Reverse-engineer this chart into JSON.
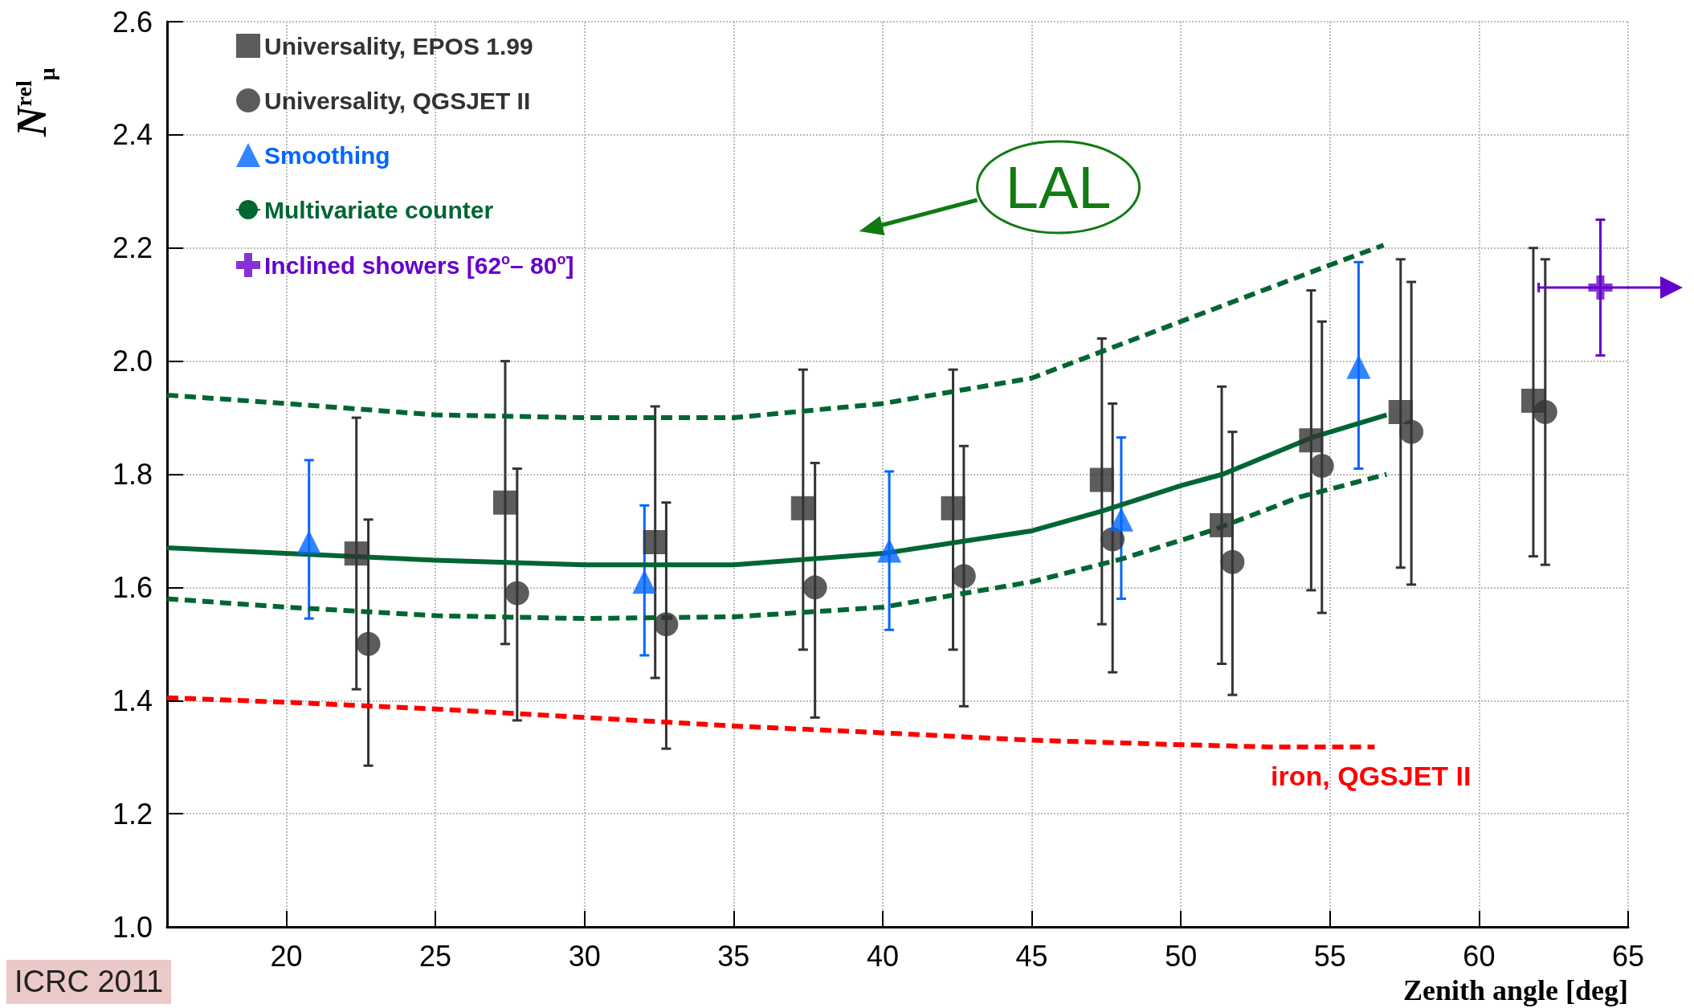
{
  "chart_data": {
    "type": "scatter",
    "xlabel": "Zenith angle [deg]",
    "ylabel": "N$^{rel}$$_{μ}$",
    "annotations": [
      "LAL",
      "ICRC 2011"
    ],
    "xlim": [
      16,
      65
    ],
    "xticks": [
      20,
      25,
      30,
      35,
      40,
      45,
      50,
      55,
      60,
      65
    ],
    "ylim": [
      1.0,
      2.6
    ],
    "yticks": [
      {
        "value": 1.0,
        "label": "1.0"
      },
      1.2,
      1.4,
      1.6,
      1.8,
      {
        "value": 2.0,
        "label": "2.0"
      },
      2.2,
      2.4,
      2.6
    ],
    "grid": true,
    "legend": "top left",
    "series": [
      {
        "name": "Universality, EPOS 1.99",
        "color": "#333333",
        "marker": "square",
        "x": [
          22.35,
          27.34,
          32.37,
          37.33,
          42.36,
          47.35,
          51.37,
          54.37,
          57.37,
          61.82
        ],
        "values": [
          1.66,
          1.75,
          1.68,
          1.74,
          1.74,
          1.79,
          1.71,
          1.86,
          1.91,
          1.93
        ],
        "errors": [
          [
            1.42,
            1.9
          ],
          [
            1.5,
            2.0
          ],
          [
            1.44,
            1.92
          ],
          [
            1.49,
            1.985
          ],
          [
            1.49,
            1.985
          ],
          [
            1.535,
            2.04
          ],
          [
            1.465,
            1.955
          ],
          [
            1.595,
            2.125
          ],
          [
            1.635,
            2.18
          ],
          [
            1.655,
            2.2
          ]
        ]
      },
      {
        "name": "Universality, QGSJET II",
        "color": "#333333",
        "marker": "circle",
        "x": [
          22.75,
          27.74,
          32.74,
          37.73,
          42.72,
          47.71,
          51.73,
          54.73,
          57.73,
          62.22
        ],
        "values": [
          1.5,
          1.59,
          1.535,
          1.6,
          1.62,
          1.685,
          1.645,
          1.815,
          1.875,
          1.91
        ],
        "errors": [
          [
            1.285,
            1.72
          ],
          [
            1.365,
            1.81
          ],
          [
            1.315,
            1.75
          ],
          [
            1.37,
            1.82
          ],
          [
            1.39,
            1.85
          ],
          [
            1.45,
            1.925
          ],
          [
            1.41,
            1.875
          ],
          [
            1.555,
            2.07
          ],
          [
            1.605,
            2.14
          ],
          [
            1.64,
            2.18
          ]
        ]
      },
      {
        "name": "Smoothing",
        "color": "#0066ff",
        "marker": "triangle",
        "x": [
          20.76,
          32.01,
          40.22,
          48.0,
          55.96
        ],
        "values": [
          1.68,
          1.61,
          1.665,
          1.72,
          1.99
        ],
        "errors": [
          [
            1.545,
            1.825
          ],
          [
            1.48,
            1.745
          ],
          [
            1.525,
            1.805
          ],
          [
            1.58,
            1.865
          ],
          [
            1.81,
            2.175
          ]
        ]
      },
      {
        "name": "Multivariate counter",
        "type": "line",
        "color": "#006633",
        "marker": "none",
        "line_style": "solid",
        "x": [
          16,
          20,
          25,
          30,
          35,
          40,
          45,
          47.35,
          50,
          51.4,
          54.4,
          56.9
        ],
        "values": [
          1.67,
          1.66,
          1.648,
          1.64,
          1.64,
          1.66,
          1.7,
          1.735,
          1.78,
          1.8,
          1.865,
          1.905
        ]
      },
      {
        "type": "line",
        "color": "#006633",
        "marker": "none",
        "line_style": "dashed",
        "x": [
          16,
          20,
          25,
          30,
          35,
          40,
          45,
          48,
          50,
          52,
          55,
          56.8
        ],
        "values": [
          1.94,
          1.925,
          1.905,
          1.9,
          1.9,
          1.925,
          1.97,
          2.03,
          2.07,
          2.11,
          2.17,
          2.205
        ]
      },
      {
        "type": "line",
        "color": "#006633",
        "marker": "none",
        "line_style": "dashed",
        "x": [
          16,
          20,
          25,
          30,
          35,
          40,
          45,
          48,
          51,
          54,
          56.9
        ],
        "values": [
          1.58,
          1.565,
          1.55,
          1.545,
          1.548,
          1.565,
          1.61,
          1.65,
          1.7,
          1.76,
          1.8
        ]
      },
      {
        "name": "iron, QGSJET II",
        "type": "line",
        "color": "#ff0000",
        "marker": "none",
        "line_style": "dashed",
        "x": [
          16,
          20,
          25,
          30,
          35,
          40,
          45,
          50,
          53,
          56.5
        ],
        "values": [
          1.405,
          1.397,
          1.385,
          1.37,
          1.355,
          1.343,
          1.33,
          1.322,
          1.318,
          1.318
        ]
      },
      {
        "name": "Inclined showers [62$^{o}$– 80$^{o}$]",
        "color": "#6600cc",
        "marker": "cross",
        "x": [
          64.07
        ],
        "values": [
          2.13
        ],
        "errors": [
          [
            2.01,
            2.25
          ]
        ],
        "xerrors": [
          [
            62.0,
            65
          ]
        ]
      }
    ]
  }
}
